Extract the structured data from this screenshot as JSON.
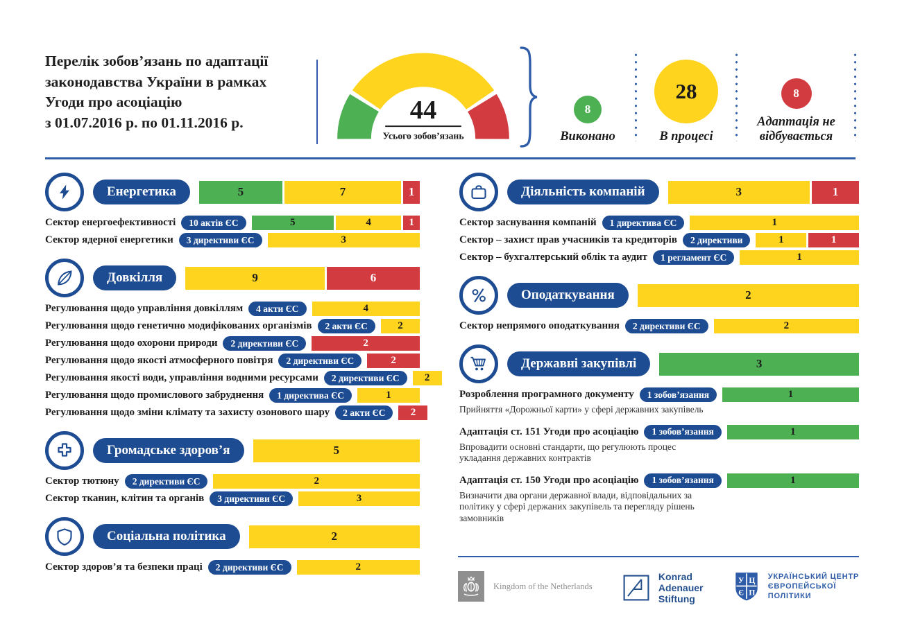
{
  "header": {
    "title_lines": [
      "Перелік зобов’язань по адаптації",
      "законодавства України в рамках",
      "Угоди про асоціацію",
      "з 01.07.2016 р. по 01.11.2016 р."
    ],
    "gauge": {
      "total": "44",
      "total_label": "Усього зобов’язань"
    },
    "stats": [
      {
        "value": "8",
        "label": "Виконано",
        "color": "#4db053"
      },
      {
        "value": "28",
        "label": "В процесі",
        "color": "#ffd41e"
      },
      {
        "value": "8",
        "label": "Адаптація не відбувається",
        "color": "#d23b40"
      }
    ]
  },
  "chart_data": [
    {
      "type": "pie",
      "title": "Усього зобов’язань",
      "total": 44,
      "categories": [
        "Виконано",
        "В процесі",
        "Адаптація не відбувається"
      ],
      "values": [
        8,
        28,
        8
      ],
      "colors": [
        "#4db053",
        "#ffd41e",
        "#d23b40"
      ]
    },
    {
      "type": "bar",
      "note": "stacked horizontal bars per section: [виконано, в процесі, не відбувається]",
      "categories": [
        "Енергетика",
        "Довкілля",
        "Громадське здоров’я",
        "Соціальна політика",
        "Діяльність компаній",
        "Оподаткування",
        "Державні закупівлі"
      ],
      "series": [
        {
          "name": "Виконано",
          "values": [
            5,
            0,
            0,
            0,
            0,
            0,
            3
          ]
        },
        {
          "name": "В процесі",
          "values": [
            7,
            9,
            5,
            2,
            3,
            2,
            0
          ]
        },
        {
          "name": "Адаптація не відбувається",
          "values": [
            1,
            6,
            0,
            0,
            1,
            0,
            0
          ]
        }
      ]
    }
  ],
  "colors": {
    "blue": "#1e4c92",
    "line_blue": "#2e5ca8",
    "green": "#4db053",
    "yellow": "#ffd41e",
    "red": "#d23b40"
  },
  "sections": {
    "left": [
      {
        "icon": "lightning-icon",
        "title": "Енергетика",
        "bar": [
          {
            "c": "g",
            "v": 5
          },
          {
            "c": "y",
            "v": 7
          },
          {
            "c": "r",
            "v": 1
          }
        ],
        "rows": [
          {
            "label": "Сектор енергоефективності",
            "badge": "10 актів ЄС",
            "bar": [
              {
                "c": "g",
                "v": 5
              },
              {
                "c": "y",
                "v": 4
              },
              {
                "c": "r",
                "v": 1
              }
            ]
          },
          {
            "label": "Сектор ядерної енергетики",
            "badge": "3 директиви ЄС",
            "bar": [
              {
                "c": "y",
                "v": 3
              }
            ]
          }
        ]
      },
      {
        "icon": "leaf-icon",
        "title": "Довкілля",
        "bar": [
          {
            "c": "y",
            "v": 9
          },
          {
            "c": "r",
            "v": 6
          }
        ],
        "rows": [
          {
            "label": "Регулювання щодо управління довкіллям",
            "badge": "4 акти ЄС",
            "bar": [
              {
                "c": "y",
                "v": 4
              }
            ]
          },
          {
            "label": "Регулювання щодо генетично модифікованих організмів",
            "badge": "2 акти ЄС",
            "bar": [
              {
                "c": "y",
                "v": 2
              }
            ]
          },
          {
            "label": "Регулювання щодо охорони природи",
            "badge": "2 директиви ЄС",
            "bar": [
              {
                "c": "r",
                "v": 2
              }
            ]
          },
          {
            "label": "Регулювання щодо якості атмосферного повітря",
            "badge": "2 директиви ЄС",
            "bar": [
              {
                "c": "r",
                "v": 2
              }
            ]
          },
          {
            "label": "Регулювання якості води, управління водними ресурсами",
            "badge": "2 директиви ЄС",
            "bar": [
              {
                "c": "y",
                "v": 2
              }
            ]
          },
          {
            "label": "Регулювання щодо промислового забруднення",
            "badge": "1 директива ЄС",
            "bar": [
              {
                "c": "y",
                "v": 1
              }
            ]
          },
          {
            "label": "Регулювання щодо зміни клімату та захисту озонового шару",
            "badge": "2 акти ЄС",
            "bar": [
              {
                "c": "r",
                "v": 2
              }
            ]
          }
        ]
      },
      {
        "icon": "cross-icon",
        "title": "Громадське здоров’я",
        "bar": [
          {
            "c": "y",
            "v": 5
          }
        ],
        "rows": [
          {
            "label": "Сектор тютюну",
            "badge": "2 директиви ЄС",
            "bar": [
              {
                "c": "y",
                "v": 2
              }
            ]
          },
          {
            "label": "Сектор тканин, клітин та органів",
            "badge": "3 директиви ЄС",
            "bar": [
              {
                "c": "y",
                "v": 3
              }
            ]
          }
        ]
      },
      {
        "icon": "shield-icon",
        "title": "Соціальна політика",
        "bar": [
          {
            "c": "y",
            "v": 2
          }
        ],
        "rows": [
          {
            "label": "Сектор здоров’я та безпеки праці",
            "badge": "2 директиви ЄС",
            "bar": [
              {
                "c": "y",
                "v": 2
              }
            ]
          }
        ]
      }
    ],
    "right": [
      {
        "icon": "briefcase-icon",
        "title": "Діяльність компаній",
        "bar": [
          {
            "c": "y",
            "v": 3
          },
          {
            "c": "r",
            "v": 1
          }
        ],
        "rows": [
          {
            "label": "Сектор заснування компаній",
            "badge": "1 директива ЄС",
            "bar": [
              {
                "c": "y",
                "v": 1
              }
            ]
          },
          {
            "label": "Сектор – захист прав учасників та кредиторів",
            "badge": "2 директиви",
            "bar": [
              {
                "c": "y",
                "v": 1
              },
              {
                "c": "r",
                "v": 1
              }
            ]
          },
          {
            "label": "Сектор – бухгалтерський облік та аудит",
            "badge": "1 регламент ЄС",
            "bar": [
              {
                "c": "y",
                "v": 1
              }
            ]
          }
        ]
      },
      {
        "icon": "percent-icon",
        "title": "Оподаткування",
        "bar": [
          {
            "c": "y",
            "v": 2
          }
        ],
        "rows": [
          {
            "label": "Сектор непрямого оподаткування",
            "badge": "2 директиви ЄС",
            "bar": [
              {
                "c": "y",
                "v": 2
              }
            ]
          }
        ]
      },
      {
        "icon": "cart-icon",
        "title": "Державні закупівлі",
        "bar": [
          {
            "c": "g",
            "v": 3
          }
        ],
        "rows": [
          {
            "label": "Розроблення програмного документу",
            "badge": "1 зобов’язання",
            "bar": [
              {
                "c": "g",
                "v": 1
              }
            ],
            "note": "Прийняття «Дорожньої карти» у сфері державних закупівель"
          },
          {
            "label": "Адаптація ст. 151 Угоди про асоціацію",
            "badge": "1 зобов’язання",
            "bar": [
              {
                "c": "g",
                "v": 1
              }
            ],
            "note": "Впровадити основні стандарти, що регулюють процес укладання державних контрактів"
          },
          {
            "label": "Адаптація ст. 150 Угоди про асоціацію",
            "badge": "1 зобов’язання",
            "bar": [
              {
                "c": "g",
                "v": 1
              }
            ],
            "note": "Визначити два органи державної влади, відповідальних за політику у сфері держаних закупівель та перегляду рішень замовників"
          }
        ]
      }
    ]
  },
  "footer": {
    "netherlands": {
      "label": "Kingdom of the Netherlands"
    },
    "kas": {
      "lines": [
        "Konrad",
        "Adenauer",
        "Stiftung"
      ]
    },
    "ucep": {
      "letters": [
        "У",
        "Ц",
        "Є",
        "П"
      ],
      "lines": [
        "УКРАЇНСЬКИЙ ЦЕНТР",
        "ЄВРОПЕЙСЬКОЇ",
        "ПОЛІТИКИ"
      ]
    }
  }
}
